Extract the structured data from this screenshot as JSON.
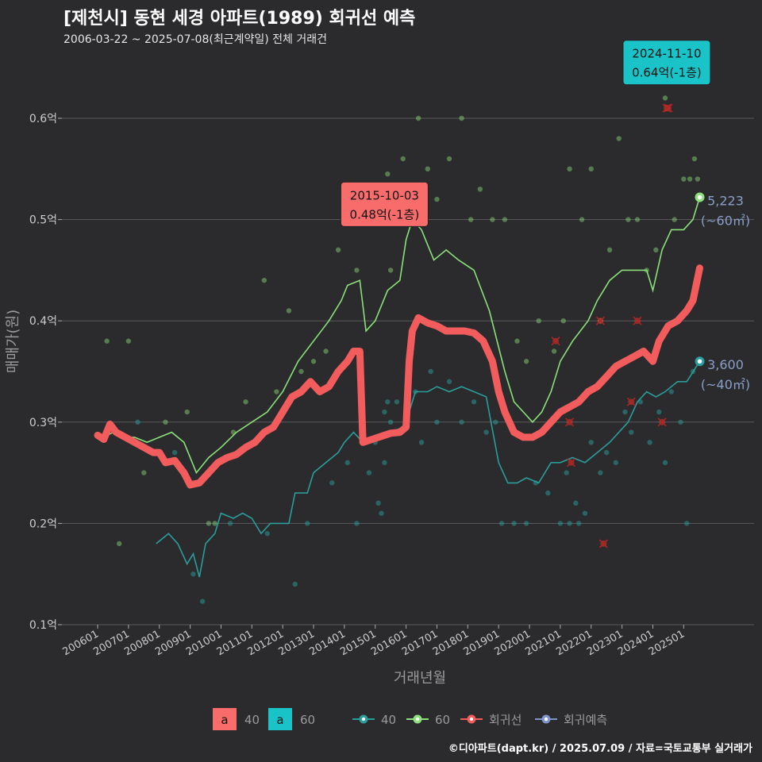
{
  "title": "[제천시] 동현 세경 아파트(1989) 회귀선 예측",
  "subtitle": "2006-03-22 ~ 2025-07-08(최근계약일) 전체 거래건",
  "footer": "©디아파트(dapt.kr) / 2025.07.09 / 자료=국토교통부 실거래가",
  "colors": {
    "background": "#2b2b2d",
    "grid": "#5a5a5c",
    "axis_text": "#cccccc",
    "series_40": "#2a9d9b",
    "series_60": "#8be07a",
    "regression": "#f25c5c",
    "prediction": "#7f95c8",
    "callout_40": "#f86c6b",
    "callout_60": "#19c3c7"
  },
  "chart_data": {
    "type": "scatter",
    "xlabel": "거래년월",
    "ylabel": "매매가(원)",
    "ylim": [
      0.1,
      0.65
    ],
    "yticks": [
      {
        "value": 0.1,
        "label": "0.1억"
      },
      {
        "value": 0.2,
        "label": "0.2억"
      },
      {
        "value": 0.3,
        "label": "0.3억"
      },
      {
        "value": 0.4,
        "label": "0.4억"
      },
      {
        "value": 0.5,
        "label": "0.5억"
      },
      {
        "value": 0.6,
        "label": "0.6억"
      }
    ],
    "xticks": [
      "200601",
      "200701",
      "200801",
      "200901",
      "201001",
      "201101",
      "201201",
      "201301",
      "201401",
      "201501",
      "201601",
      "201701",
      "201801",
      "201901",
      "202001",
      "202101",
      "202201",
      "202301",
      "202401",
      "202501"
    ],
    "xlim": [
      2005.5,
      2025.9
    ],
    "grid": true,
    "legend": {
      "position": "bottom",
      "fill_items": [
        {
          "key": "a",
          "label": "40",
          "color": "#f86c6b"
        },
        {
          "key": "a",
          "label": "60",
          "color": "#19c3c7"
        }
      ],
      "line_items": [
        {
          "label": "40",
          "color": "#2a9d9b"
        },
        {
          "label": "60",
          "color": "#8be07a"
        },
        {
          "label": "회귀선",
          "color": "#f25c5c"
        },
        {
          "label": "회귀예측",
          "color": "#7f95c8"
        }
      ]
    },
    "series": [
      {
        "name": "40",
        "color": "#2a9d9b",
        "line": [
          [
            2007.9,
            0.18
          ],
          [
            2008.3,
            0.19
          ],
          [
            2008.6,
            0.18
          ],
          [
            2008.9,
            0.16
          ],
          [
            2009.1,
            0.17
          ],
          [
            2009.3,
            0.147
          ],
          [
            2009.5,
            0.18
          ],
          [
            2009.8,
            0.19
          ],
          [
            2010.0,
            0.21
          ],
          [
            2010.4,
            0.205
          ],
          [
            2010.7,
            0.21
          ],
          [
            2011.0,
            0.205
          ],
          [
            2011.3,
            0.19
          ],
          [
            2011.6,
            0.2
          ],
          [
            2011.9,
            0.2
          ],
          [
            2012.2,
            0.2
          ],
          [
            2012.4,
            0.23
          ],
          [
            2012.8,
            0.23
          ],
          [
            2013.0,
            0.25
          ],
          [
            2013.4,
            0.26
          ],
          [
            2013.8,
            0.27
          ],
          [
            2014.0,
            0.28
          ],
          [
            2014.3,
            0.29
          ],
          [
            2014.6,
            0.28
          ],
          [
            2015.0,
            0.285
          ],
          [
            2015.5,
            0.29
          ],
          [
            2015.9,
            0.295
          ],
          [
            2016.0,
            0.3
          ],
          [
            2016.3,
            0.33
          ],
          [
            2016.7,
            0.33
          ],
          [
            2017.0,
            0.335
          ],
          [
            2017.4,
            0.33
          ],
          [
            2017.8,
            0.335
          ],
          [
            2018.2,
            0.33
          ],
          [
            2018.6,
            0.325
          ],
          [
            2019.0,
            0.26
          ],
          [
            2019.3,
            0.24
          ],
          [
            2019.6,
            0.24
          ],
          [
            2019.9,
            0.245
          ],
          [
            2020.3,
            0.24
          ],
          [
            2020.7,
            0.26
          ],
          [
            2021.0,
            0.26
          ],
          [
            2021.4,
            0.265
          ],
          [
            2021.8,
            0.26
          ],
          [
            2022.2,
            0.27
          ],
          [
            2022.6,
            0.28
          ],
          [
            2022.9,
            0.29
          ],
          [
            2023.2,
            0.3
          ],
          [
            2023.5,
            0.32
          ],
          [
            2023.8,
            0.33
          ],
          [
            2024.1,
            0.325
          ],
          [
            2024.4,
            0.33
          ],
          [
            2024.8,
            0.34
          ],
          [
            2025.1,
            0.34
          ],
          [
            2025.52,
            0.36
          ]
        ],
        "end_label": "3,600",
        "end_sub": "(~40㎡)",
        "end_value": 0.36
      },
      {
        "name": "60",
        "color": "#8be07a",
        "line": [
          [
            2006.2,
            0.285
          ],
          [
            2006.5,
            0.29
          ],
          [
            2006.8,
            0.285
          ],
          [
            2007.2,
            0.285
          ],
          [
            2007.6,
            0.28
          ],
          [
            2008.0,
            0.285
          ],
          [
            2008.4,
            0.29
          ],
          [
            2008.8,
            0.28
          ],
          [
            2009.2,
            0.25
          ],
          [
            2009.6,
            0.265
          ],
          [
            2010.0,
            0.275
          ],
          [
            2010.5,
            0.29
          ],
          [
            2011.0,
            0.3
          ],
          [
            2011.5,
            0.31
          ],
          [
            2012.0,
            0.33
          ],
          [
            2012.5,
            0.36
          ],
          [
            2013.0,
            0.38
          ],
          [
            2013.5,
            0.4
          ],
          [
            2013.9,
            0.42
          ],
          [
            2014.1,
            0.435
          ],
          [
            2014.5,
            0.44
          ],
          [
            2014.7,
            0.39
          ],
          [
            2015.0,
            0.4
          ],
          [
            2015.4,
            0.43
          ],
          [
            2015.8,
            0.44
          ],
          [
            2016.0,
            0.48
          ],
          [
            2016.2,
            0.5
          ],
          [
            2016.5,
            0.49
          ],
          [
            2016.9,
            0.46
          ],
          [
            2017.3,
            0.47
          ],
          [
            2017.7,
            0.46
          ],
          [
            2018.2,
            0.45
          ],
          [
            2018.7,
            0.41
          ],
          [
            2019.2,
            0.35
          ],
          [
            2019.5,
            0.32
          ],
          [
            2019.8,
            0.31
          ],
          [
            2020.1,
            0.3
          ],
          [
            2020.4,
            0.31
          ],
          [
            2020.7,
            0.33
          ],
          [
            2021.0,
            0.36
          ],
          [
            2021.4,
            0.38
          ],
          [
            2021.9,
            0.4
          ],
          [
            2022.2,
            0.42
          ],
          [
            2022.6,
            0.44
          ],
          [
            2023.0,
            0.45
          ],
          [
            2023.4,
            0.45
          ],
          [
            2023.8,
            0.45
          ],
          [
            2024.0,
            0.43
          ],
          [
            2024.3,
            0.47
          ],
          [
            2024.6,
            0.49
          ],
          [
            2025.0,
            0.49
          ],
          [
            2025.3,
            0.5
          ],
          [
            2025.52,
            0.522
          ]
        ],
        "end_label": "5,223",
        "end_sub": "(~60㎡)",
        "end_value": 0.522
      }
    ],
    "regression": {
      "name": "회귀선",
      "color": "#f25c5c",
      "points": [
        [
          2006.0,
          0.287
        ],
        [
          2006.2,
          0.283
        ],
        [
          2006.4,
          0.298
        ],
        [
          2006.6,
          0.29
        ],
        [
          2006.9,
          0.285
        ],
        [
          2007.2,
          0.28
        ],
        [
          2007.5,
          0.275
        ],
        [
          2007.8,
          0.27
        ],
        [
          2008.0,
          0.27
        ],
        [
          2008.2,
          0.26
        ],
        [
          2008.5,
          0.262
        ],
        [
          2008.8,
          0.25
        ],
        [
          2009.0,
          0.238
        ],
        [
          2009.3,
          0.24
        ],
        [
          2009.6,
          0.25
        ],
        [
          2009.9,
          0.26
        ],
        [
          2010.2,
          0.265
        ],
        [
          2010.5,
          0.268
        ],
        [
          2010.8,
          0.275
        ],
        [
          2011.1,
          0.28
        ],
        [
          2011.4,
          0.29
        ],
        [
          2011.7,
          0.295
        ],
        [
          2012.0,
          0.31
        ],
        [
          2012.3,
          0.325
        ],
        [
          2012.6,
          0.33
        ],
        [
          2012.9,
          0.34
        ],
        [
          2013.2,
          0.33
        ],
        [
          2013.5,
          0.335
        ],
        [
          2013.8,
          0.35
        ],
        [
          2014.1,
          0.36
        ],
        [
          2014.3,
          0.37
        ],
        [
          2014.5,
          0.37
        ],
        [
          2014.6,
          0.28
        ],
        [
          2014.9,
          0.283
        ],
        [
          2015.2,
          0.286
        ],
        [
          2015.5,
          0.289
        ],
        [
          2015.8,
          0.29
        ],
        [
          2016.0,
          0.295
        ],
        [
          2016.1,
          0.36
        ],
        [
          2016.2,
          0.39
        ],
        [
          2016.4,
          0.403
        ],
        [
          2016.7,
          0.398
        ],
        [
          2017.0,
          0.395
        ],
        [
          2017.3,
          0.39
        ],
        [
          2017.6,
          0.39
        ],
        [
          2017.9,
          0.39
        ],
        [
          2018.2,
          0.388
        ],
        [
          2018.5,
          0.38
        ],
        [
          2018.8,
          0.36
        ],
        [
          2019.0,
          0.33
        ],
        [
          2019.2,
          0.31
        ],
        [
          2019.5,
          0.29
        ],
        [
          2019.8,
          0.285
        ],
        [
          2020.1,
          0.285
        ],
        [
          2020.4,
          0.29
        ],
        [
          2020.7,
          0.3
        ],
        [
          2021.0,
          0.31
        ],
        [
          2021.3,
          0.315
        ],
        [
          2021.6,
          0.32
        ],
        [
          2021.9,
          0.33
        ],
        [
          2022.2,
          0.335
        ],
        [
          2022.5,
          0.345
        ],
        [
          2022.8,
          0.355
        ],
        [
          2023.1,
          0.36
        ],
        [
          2023.4,
          0.365
        ],
        [
          2023.7,
          0.37
        ],
        [
          2024.0,
          0.36
        ],
        [
          2024.2,
          0.38
        ],
        [
          2024.5,
          0.395
        ],
        [
          2024.8,
          0.4
        ],
        [
          2025.1,
          0.41
        ],
        [
          2025.3,
          0.42
        ],
        [
          2025.52,
          0.452
        ]
      ]
    },
    "points_40": [
      [
        2007.3,
        0.3
      ],
      [
        2008.5,
        0.27
      ],
      [
        2009.1,
        0.15
      ],
      [
        2009.4,
        0.123
      ],
      [
        2010.3,
        0.2
      ],
      [
        2011.5,
        0.19
      ],
      [
        2012.4,
        0.14
      ],
      [
        2012.8,
        0.2
      ],
      [
        2013.6,
        0.24
      ],
      [
        2014.1,
        0.26
      ],
      [
        2014.4,
        0.2
      ],
      [
        2014.8,
        0.25
      ],
      [
        2015.0,
        0.28
      ],
      [
        2015.1,
        0.22
      ],
      [
        2015.2,
        0.21
      ],
      [
        2015.3,
        0.26
      ],
      [
        2015.3,
        0.31
      ],
      [
        2015.4,
        0.32
      ],
      [
        2015.5,
        0.3
      ],
      [
        2015.7,
        0.32
      ],
      [
        2016.0,
        0.3
      ],
      [
        2016.3,
        0.33
      ],
      [
        2016.5,
        0.28
      ],
      [
        2016.8,
        0.35
      ],
      [
        2017.0,
        0.3
      ],
      [
        2017.4,
        0.34
      ],
      [
        2017.8,
        0.3
      ],
      [
        2018.2,
        0.32
      ],
      [
        2018.6,
        0.29
      ],
      [
        2018.9,
        0.3
      ],
      [
        2019.1,
        0.2
      ],
      [
        2019.5,
        0.2
      ],
      [
        2019.9,
        0.2
      ],
      [
        2020.2,
        0.24
      ],
      [
        2020.6,
        0.23
      ],
      [
        2021.0,
        0.2
      ],
      [
        2021.2,
        0.25
      ],
      [
        2021.3,
        0.2
      ],
      [
        2021.5,
        0.22
      ],
      [
        2021.6,
        0.2
      ],
      [
        2021.8,
        0.21
      ],
      [
        2022.0,
        0.28
      ],
      [
        2022.3,
        0.25
      ],
      [
        2022.5,
        0.27
      ],
      [
        2022.8,
        0.26
      ],
      [
        2023.1,
        0.31
      ],
      [
        2023.3,
        0.29
      ],
      [
        2023.6,
        0.32
      ],
      [
        2023.9,
        0.28
      ],
      [
        2024.2,
        0.31
      ],
      [
        2024.4,
        0.26
      ],
      [
        2024.6,
        0.33
      ],
      [
        2024.9,
        0.3
      ],
      [
        2025.1,
        0.2
      ],
      [
        2025.3,
        0.35
      ]
    ],
    "points_60": [
      [
        2006.3,
        0.38
      ],
      [
        2006.7,
        0.18
      ],
      [
        2007.0,
        0.38
      ],
      [
        2007.5,
        0.25
      ],
      [
        2008.2,
        0.3
      ],
      [
        2008.9,
        0.31
      ],
      [
        2009.6,
        0.2
      ],
      [
        2009.8,
        0.2
      ],
      [
        2010.4,
        0.29
      ],
      [
        2010.8,
        0.32
      ],
      [
        2011.4,
        0.44
      ],
      [
        2011.8,
        0.33
      ],
      [
        2012.2,
        0.41
      ],
      [
        2012.6,
        0.35
      ],
      [
        2013.0,
        0.36
      ],
      [
        2013.4,
        0.37
      ],
      [
        2013.8,
        0.47
      ],
      [
        2014.0,
        0.5
      ],
      [
        2014.4,
        0.45
      ],
      [
        2014.8,
        0.53
      ],
      [
        2015.1,
        0.5
      ],
      [
        2015.4,
        0.545
      ],
      [
        2015.5,
        0.45
      ],
      [
        2015.7,
        0.5
      ],
      [
        2015.9,
        0.56
      ],
      [
        2016.1,
        0.53
      ],
      [
        2016.4,
        0.6
      ],
      [
        2016.7,
        0.55
      ],
      [
        2017.0,
        0.52
      ],
      [
        2017.4,
        0.56
      ],
      [
        2017.8,
        0.6
      ],
      [
        2018.1,
        0.5
      ],
      [
        2018.4,
        0.53
      ],
      [
        2018.8,
        0.5
      ],
      [
        2019.2,
        0.5
      ],
      [
        2019.6,
        0.38
      ],
      [
        2019.9,
        0.36
      ],
      [
        2020.3,
        0.4
      ],
      [
        2020.8,
        0.37
      ],
      [
        2021.1,
        0.4
      ],
      [
        2021.3,
        0.55
      ],
      [
        2021.7,
        0.5
      ],
      [
        2022.0,
        0.55
      ],
      [
        2022.3,
        0.4
      ],
      [
        2022.6,
        0.47
      ],
      [
        2022.9,
        0.58
      ],
      [
        2023.2,
        0.5
      ],
      [
        2023.5,
        0.5
      ],
      [
        2023.8,
        0.45
      ],
      [
        2024.1,
        0.47
      ],
      [
        2024.4,
        0.62
      ],
      [
        2024.7,
        0.5
      ],
      [
        2024.9,
        0.64
      ],
      [
        2025.0,
        0.54
      ],
      [
        2025.2,
        0.54
      ],
      [
        2025.35,
        0.56
      ],
      [
        2025.45,
        0.54
      ]
    ],
    "regression_outliers": [
      [
        2020.85,
        0.38
      ],
      [
        2021.35,
        0.26
      ],
      [
        2021.3,
        0.3
      ],
      [
        2022.3,
        0.4
      ],
      [
        2022.4,
        0.18
      ],
      [
        2023.5,
        0.4
      ],
      [
        2023.3,
        0.32
      ],
      [
        2024.3,
        0.3
      ],
      [
        2024.5,
        0.61
      ],
      [
        2024.45,
        0.61
      ]
    ],
    "annotations": [
      {
        "date": "2015-10-03",
        "value_text": "0.48억(-1층)",
        "color": "#f86c6b",
        "x": 2015.3,
        "y": 0.49
      },
      {
        "date": "2024-11-10",
        "value_text": "0.64억(-1층)",
        "color": "#19c3c7",
        "x": 2024.45,
        "y": 0.63
      }
    ]
  }
}
